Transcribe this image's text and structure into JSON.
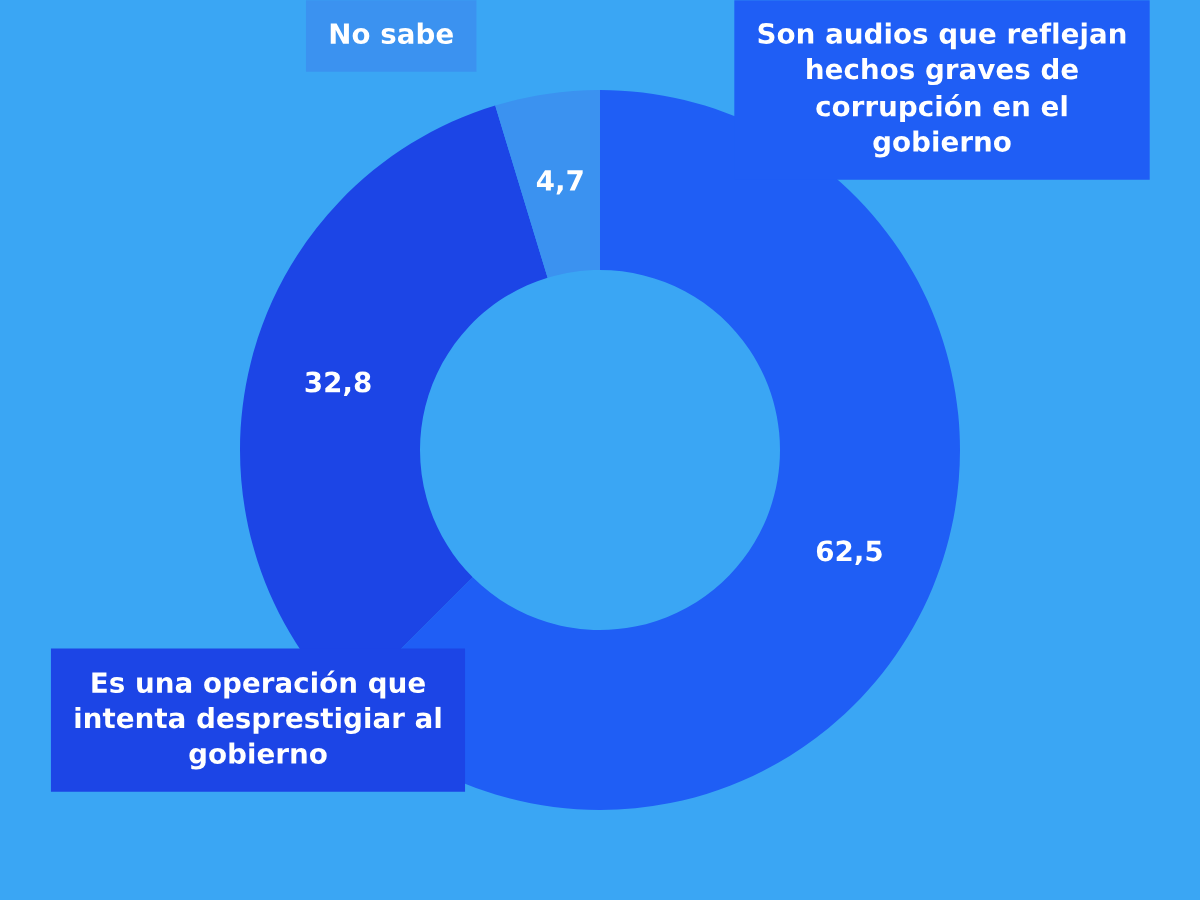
{
  "chart_data": {
    "type": "donut",
    "categories": [
      "Son audios que reflejan hechos graves de corrupción en el gobierno",
      "Es una operación que intenta desprestigiar al gobierno",
      "No sabe"
    ],
    "values": [
      62.5,
      32.8,
      4.7
    ],
    "colors": [
      "#1f5ef5",
      "#1c45e6",
      "#3b92f0"
    ],
    "value_labels": [
      "62,5",
      "32,8",
      "4,7"
    ],
    "legend": false
  }
}
